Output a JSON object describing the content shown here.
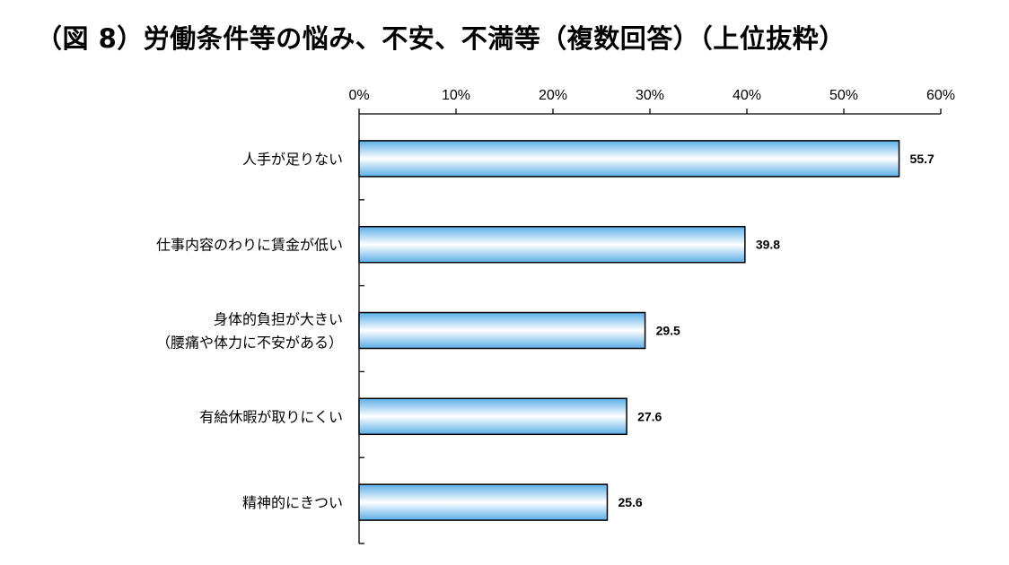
{
  "title": "（図 8）労働条件等の悩み、不安、不満等（複数回答）（上位抜粋）",
  "chart_data": {
    "type": "bar",
    "orientation": "horizontal",
    "title": "（図 8）労働条件等の悩み、不安、不満等（複数回答）（上位抜粋）",
    "categories": [
      [
        "人手が足りない"
      ],
      [
        "仕事内容のわりに賃金が低い"
      ],
      [
        "身体的負担が大きい",
        "（腰痛や体力に不安がある）"
      ],
      [
        "有給休暇が取りにくい"
      ],
      [
        "精神的にきつい"
      ]
    ],
    "values": [
      55.7,
      39.8,
      29.5,
      27.6,
      25.6
    ],
    "value_labels": [
      "55.7",
      "39.8",
      "29.5",
      "27.6",
      "25.6"
    ],
    "xlim": [
      0,
      60
    ],
    "xticks": [
      0,
      10,
      20,
      30,
      40,
      50,
      60
    ],
    "xtick_labels": [
      "0%",
      "10%",
      "20%",
      "30%",
      "40%",
      "50%",
      "60%"
    ],
    "axis_position": "top",
    "grid": false,
    "legend": "none",
    "bar_colors": {
      "edge": "#5aaee8",
      "middle": "#ffffff",
      "outline": "#000000"
    }
  }
}
